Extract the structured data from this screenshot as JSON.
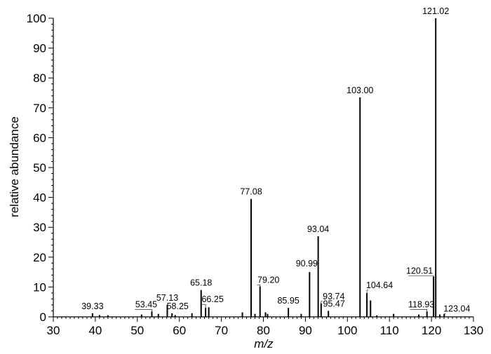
{
  "chart_data": {
    "type": "bar",
    "title": "",
    "xlabel": "m/z",
    "ylabel": "relative abundance",
    "xlim": [
      30,
      130
    ],
    "ylim": [
      0,
      100
    ],
    "x_ticks": [
      30,
      40,
      50,
      60,
      70,
      80,
      90,
      100,
      110,
      120,
      130
    ],
    "y_ticks": [
      0,
      10,
      20,
      30,
      40,
      50,
      60,
      70,
      80,
      90,
      100
    ],
    "grid": false,
    "peaks": [
      {
        "x": 39.33,
        "y": 1.2
      },
      {
        "x": 41.0,
        "y": 0.6
      },
      {
        "x": 43.0,
        "y": 0.5
      },
      {
        "x": 51.0,
        "y": 0.8
      },
      {
        "x": 53.45,
        "y": 1.8
      },
      {
        "x": 55.0,
        "y": 1.0
      },
      {
        "x": 57.13,
        "y": 4.0
      },
      {
        "x": 58.25,
        "y": 1.2
      },
      {
        "x": 59.0,
        "y": 0.6
      },
      {
        "x": 63.0,
        "y": 1.2
      },
      {
        "x": 65.18,
        "y": 9.0
      },
      {
        "x": 66.25,
        "y": 3.0
      },
      {
        "x": 67.0,
        "y": 3.2
      },
      {
        "x": 75.0,
        "y": 1.5
      },
      {
        "x": 77.08,
        "y": 39.5
      },
      {
        "x": 78.0,
        "y": 1.0
      },
      {
        "x": 79.2,
        "y": 10.2
      },
      {
        "x": 80.5,
        "y": 1.5
      },
      {
        "x": 81.0,
        "y": 1.0
      },
      {
        "x": 85.95,
        "y": 3.0
      },
      {
        "x": 89.0,
        "y": 1.0
      },
      {
        "x": 90.99,
        "y": 15.0
      },
      {
        "x": 93.04,
        "y": 27.0
      },
      {
        "x": 93.74,
        "y": 4.5
      },
      {
        "x": 95.47,
        "y": 2.0
      },
      {
        "x": 103.0,
        "y": 73.5
      },
      {
        "x": 104.64,
        "y": 8.0
      },
      {
        "x": 105.5,
        "y": 5.5
      },
      {
        "x": 107.0,
        "y": 0.5
      },
      {
        "x": 111.0,
        "y": 1.0
      },
      {
        "x": 117.0,
        "y": 0.8
      },
      {
        "x": 118.93,
        "y": 1.8
      },
      {
        "x": 120.51,
        "y": 13.5
      },
      {
        "x": 121.02,
        "y": 100.0
      },
      {
        "x": 122.0,
        "y": 0.8
      },
      {
        "x": 123.04,
        "y": 1.0
      }
    ],
    "annotations": [
      {
        "text": "39.33",
        "x": 39.33,
        "y": 1.2
      },
      {
        "text": "53.45",
        "x": 53.45,
        "y": 1.8
      },
      {
        "text": "57.13",
        "x": 57.13,
        "y": 4.0
      },
      {
        "text": "58.25",
        "x": 58.25,
        "y": 1.2
      },
      {
        "text": "65.18",
        "x": 65.18,
        "y": 9.0
      },
      {
        "text": "66.25",
        "x": 66.25,
        "y": 3.0
      },
      {
        "text": "77.08",
        "x": 77.08,
        "y": 39.5
      },
      {
        "text": "79.20",
        "x": 79.2,
        "y": 10.2
      },
      {
        "text": "85.95",
        "x": 85.95,
        "y": 3.0
      },
      {
        "text": "90.99",
        "x": 90.99,
        "y": 15.0
      },
      {
        "text": "93.04",
        "x": 93.04,
        "y": 27.0
      },
      {
        "text": "93.74",
        "x": 93.74,
        "y": 4.5
      },
      {
        "text": "95.47",
        "x": 95.47,
        "y": 2.0
      },
      {
        "text": "103.00",
        "x": 103.0,
        "y": 73.5
      },
      {
        "text": "104.64",
        "x": 104.64,
        "y": 8.0
      },
      {
        "text": "118.93",
        "x": 118.93,
        "y": 1.8
      },
      {
        "text": "120.51",
        "x": 120.51,
        "y": 13.5
      },
      {
        "text": "121.02",
        "x": 121.02,
        "y": 100.0
      },
      {
        "text": "123.04",
        "x": 123.04,
        "y": 1.0
      }
    ]
  }
}
